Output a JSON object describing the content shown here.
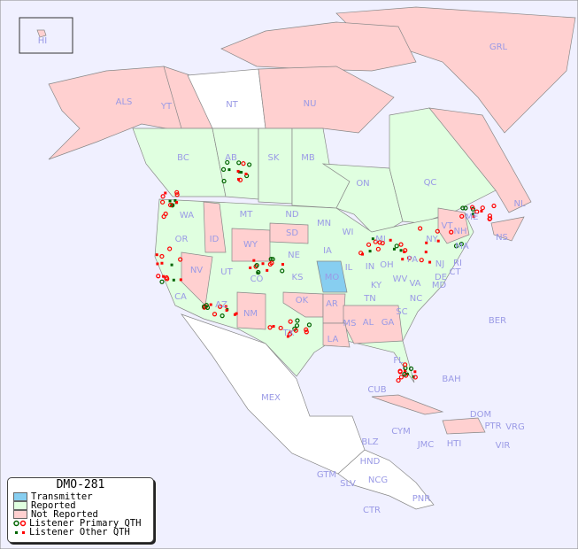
{
  "legend": {
    "title": "DMO-281",
    "items": [
      {
        "label": "Transmitter",
        "color": "#87cef0"
      },
      {
        "label": "Reported",
        "color": "#e0ffe0"
      },
      {
        "label": "Not Reported",
        "color": "#ffd0d0"
      },
      {
        "label": "Listener Primary QTH",
        "marker": "circle",
        "colors": [
          "#006400",
          "#ff0000"
        ]
      },
      {
        "label": "Listener Other QTH",
        "marker": "square",
        "colors": [
          "#006400",
          "#ff0000"
        ]
      }
    ]
  },
  "colors": {
    "ocean": "#f0f0ff",
    "other": "#ffffff",
    "reported": "#e0ffe0",
    "not_reported": "#ffd0d0",
    "transmitter": "#87cef0",
    "label": "#9a9ae6"
  },
  "transmitter_region": "MO",
  "region_labels": [
    "HI",
    "ALS",
    "YT",
    "NT",
    "NU",
    "GRL",
    "BC",
    "AB",
    "SK",
    "MB",
    "ON",
    "QC",
    "NL",
    "NS",
    "WA",
    "OR",
    "ID",
    "MT",
    "WY",
    "ND",
    "SD",
    "MN",
    "WI",
    "MI",
    "NE",
    "IA",
    "IL",
    "IN",
    "OH",
    "PA",
    "NY",
    "VT",
    "NH",
    "ME",
    "MA",
    "CT",
    "RI",
    "NJ",
    "DE",
    "MD",
    "NV",
    "UT",
    "CO",
    "KS",
    "MO",
    "KY",
    "WV",
    "VA",
    "CA",
    "AZ",
    "NM",
    "OK",
    "AR",
    "TN",
    "NC",
    "SC",
    "MS",
    "AL",
    "GA",
    "LA",
    "TX",
    "FL",
    "MEX",
    "CUB",
    "BAH",
    "DOM",
    "PTR",
    "VRG",
    "CYM",
    "JMC",
    "HTI",
    "VIR",
    "BER",
    "BLZ",
    "HND",
    "GTM",
    "SLV",
    "NCG",
    "CTR",
    "PNR"
  ]
}
